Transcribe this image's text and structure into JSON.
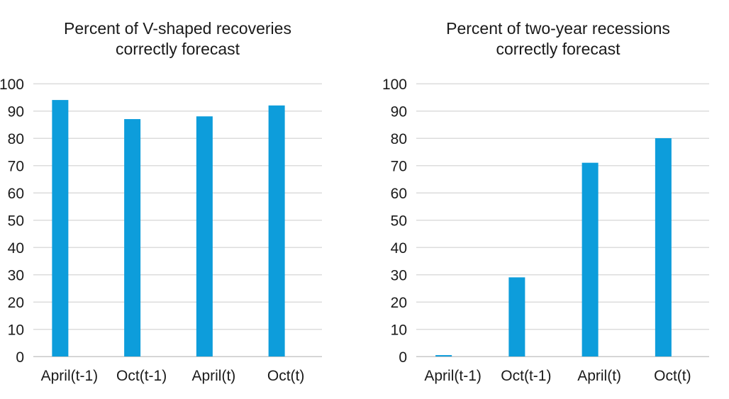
{
  "figure": {
    "background": "#ffffff",
    "text_color": "#1a1a1a",
    "gridline_color": "#dcdcdc",
    "axis_line_color": "#c8c8c8",
    "bar_color": "#0d9ddb"
  },
  "chart_data": [
    {
      "type": "bar",
      "title": "Percent of V-shaped recoveries correctly forecast",
      "title_lines": [
        "Percent of V-shaped recoveries",
        "correctly forecast"
      ],
      "categories": [
        "April(t-1)",
        "Oct(t-1)",
        "April(t)",
        "Oct(t)"
      ],
      "values": [
        94,
        87,
        88,
        92
      ],
      "xlabel": "",
      "ylabel": "",
      "ylim": [
        0,
        100
      ],
      "yticks": [
        0,
        10,
        20,
        30,
        40,
        50,
        60,
        70,
        80,
        90,
        100
      ],
      "grid": true,
      "legend": "none",
      "bar_color": "#0d9ddb"
    },
    {
      "type": "bar",
      "title": "Percent of two-year recessions correctly forecast",
      "title_lines": [
        "Percent of two-year recessions",
        "correctly forecast"
      ],
      "categories": [
        "April(t-1)",
        "Oct(t-1)",
        "April(t)",
        "Oct(t)"
      ],
      "values": [
        0.5,
        29,
        71,
        80
      ],
      "xlabel": "",
      "ylabel": "",
      "ylim": [
        0,
        100
      ],
      "yticks": [
        0,
        10,
        20,
        30,
        40,
        50,
        60,
        70,
        80,
        90,
        100
      ],
      "grid": true,
      "legend": "none",
      "bar_color": "#0d9ddb"
    }
  ]
}
